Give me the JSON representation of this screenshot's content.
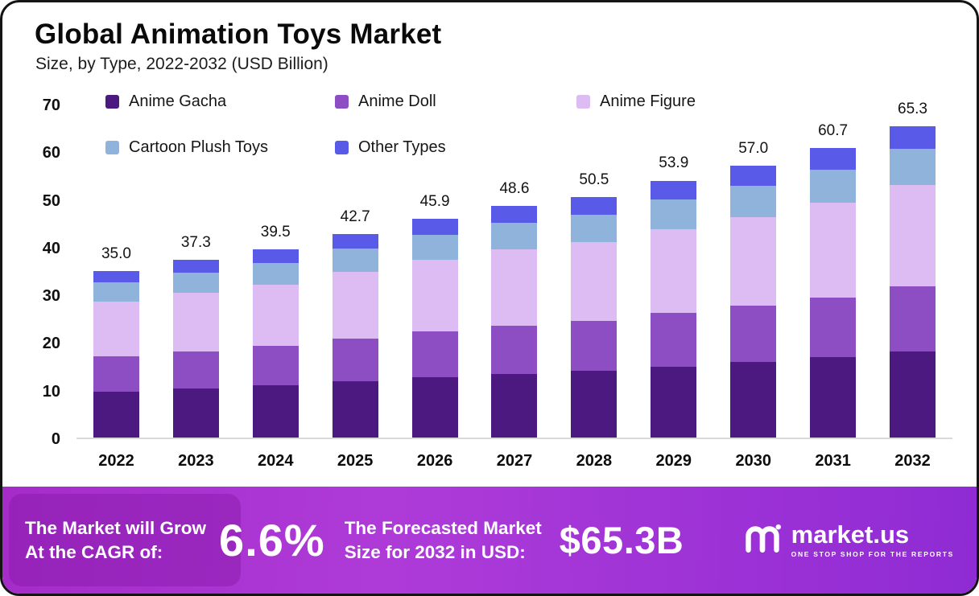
{
  "header": {
    "title": "Global Animation Toys Market",
    "subtitle": "Size, by Type, 2022-2032 (USD Billion)"
  },
  "chart_data": {
    "type": "bar",
    "stacked": true,
    "title": "Global Animation Toys Market Size, by Type, 2022-2032 (USD Billion)",
    "xlabel": "",
    "ylabel": "",
    "ylim": [
      0,
      70
    ],
    "ytick_step": 10,
    "grid": false,
    "legend_position": "top-left",
    "legend_rows": [
      3,
      2
    ],
    "categories": [
      "2022",
      "2023",
      "2024",
      "2025",
      "2026",
      "2027",
      "2028",
      "2029",
      "2030",
      "2031",
      "2032"
    ],
    "series": [
      {
        "name": "Anime Gacha",
        "color": "#4C1980",
        "values": [
          9.7,
          10.3,
          10.9,
          11.8,
          12.7,
          13.4,
          14.0,
          14.9,
          15.8,
          16.8,
          18.1
        ]
      },
      {
        "name": "Anime Doll",
        "color": "#8C4EC2",
        "values": [
          7.3,
          7.8,
          8.3,
          8.9,
          9.6,
          10.1,
          10.5,
          11.2,
          11.9,
          12.6,
          13.6
        ]
      },
      {
        "name": "Anime Figure",
        "color": "#DCBCF2",
        "values": [
          11.5,
          12.2,
          12.9,
          14.0,
          15.0,
          15.9,
          16.5,
          17.6,
          18.6,
          19.8,
          21.3
        ]
      },
      {
        "name": "Cartoon Plush Toys",
        "color": "#8FB3DB",
        "values": [
          4.0,
          4.3,
          4.5,
          4.9,
          5.2,
          5.6,
          5.8,
          6.2,
          6.5,
          7.0,
          7.5
        ]
      },
      {
        "name": "Other Types",
        "color": "#5A5AE8",
        "values": [
          2.5,
          2.7,
          2.9,
          3.1,
          3.4,
          3.6,
          3.7,
          4.0,
          4.2,
          4.5,
          4.8
        ]
      }
    ],
    "totals": [
      35.0,
      37.3,
      39.5,
      42.7,
      45.9,
      48.6,
      50.5,
      53.9,
      57.0,
      60.7,
      65.3
    ],
    "total_labels": [
      "35.0",
      "37.3",
      "39.5",
      "42.7",
      "45.9",
      "48.6",
      "50.5",
      "53.9",
      "57.0",
      "60.7",
      "65.3"
    ]
  },
  "banner": {
    "cagr_label": "The Market will Grow\nAt the CAGR of:",
    "cagr_value": "6.6%",
    "forecast_label": "The Forecasted Market\nSize for 2032 in USD:",
    "forecast_value": "$65.3B",
    "logo_text": "market.us",
    "logo_tagline": "ONE STOP SHOP FOR THE REPORTS"
  }
}
